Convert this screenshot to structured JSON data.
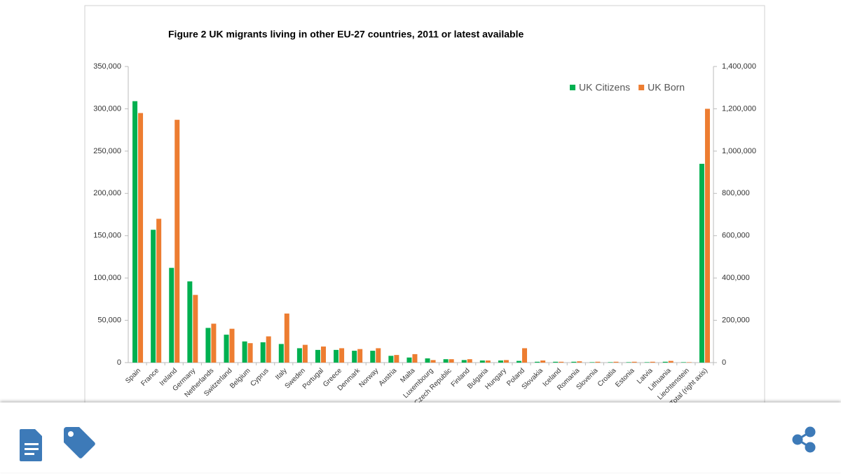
{
  "chart_data": {
    "type": "bar",
    "title": "Figure 2   UK migrants living in other EU-27 countries, 2011 or latest available",
    "categories": [
      "Spain",
      "France",
      "Ireland",
      "Germany",
      "Netherlands",
      "Switzerland",
      "Belgium",
      "Cyprus",
      "Italy",
      "Sweden",
      "Portugal",
      "Greece",
      "Denmark",
      "Norway",
      "Austria",
      "Malta",
      "Luxembourg",
      "Czech Republic",
      "Finland",
      "Bulgaria",
      "Hungary",
      "Poland",
      "Slovakia",
      "Iceland",
      "Romania",
      "Slovenia",
      "Croatia",
      "Estonia",
      "Latvia",
      "Lithuania",
      "Liechtenstein",
      "Total (right axis)"
    ],
    "series": [
      {
        "name": "UK Citizens",
        "color": "#00b050",
        "values": [
          309000,
          157000,
          112000,
          96000,
          41000,
          33000,
          25000,
          24000,
          22000,
          17000,
          15000,
          15000,
          14000,
          14000,
          8000,
          6000,
          5000,
          4000,
          3000,
          2500,
          2500,
          2000,
          1000,
          1000,
          1000,
          500,
          500,
          500,
          500,
          1000,
          500,
          null
        ]
      },
      {
        "name": "UK Born",
        "color": "#ed7d31",
        "values": [
          295000,
          170000,
          287000,
          80000,
          46000,
          40000,
          23000,
          31000,
          58000,
          21000,
          19000,
          17000,
          16000,
          17000,
          9000,
          10000,
          3000,
          4000,
          4000,
          2500,
          3000,
          17000,
          2500,
          1000,
          1500,
          1000,
          1000,
          1000,
          1000,
          2000,
          500,
          null
        ]
      },
      {
        "name": "UK Citizens",
        "color": "#00b050",
        "axis": "y2",
        "values": [
          null,
          null,
          null,
          null,
          null,
          null,
          null,
          null,
          null,
          null,
          null,
          null,
          null,
          null,
          null,
          null,
          null,
          null,
          null,
          null,
          null,
          null,
          null,
          null,
          null,
          null,
          null,
          null,
          null,
          null,
          null,
          940000
        ]
      },
      {
        "name": "UK Born",
        "color": "#ed7d31",
        "axis": "y2",
        "values": [
          null,
          null,
          null,
          null,
          null,
          null,
          null,
          null,
          null,
          null,
          null,
          null,
          null,
          null,
          null,
          null,
          null,
          null,
          null,
          null,
          null,
          null,
          null,
          null,
          null,
          null,
          null,
          null,
          null,
          null,
          null,
          1200000
        ]
      }
    ],
    "ylim": [
      0,
      350000
    ],
    "yticks": [
      0,
      {
        "value": 50000,
        "label": "50,000"
      },
      {
        "value": 100000,
        "label": "100,000"
      },
      {
        "value": 150000,
        "label": "150,000"
      },
      {
        "value": 200000,
        "label": "200,000"
      },
      {
        "value": 250000,
        "label": "250,000"
      },
      {
        "value": 300000,
        "label": "300,000"
      },
      {
        "value": 350000,
        "label": "350,000"
      }
    ],
    "y2lim": [
      0,
      1400000
    ],
    "y2ticks": [
      0,
      {
        "value": 200000,
        "label": "200,000"
      },
      {
        "value": 400000,
        "label": "400,000"
      },
      {
        "value": 600000,
        "label": "600,000"
      },
      {
        "value": 800000,
        "label": "800,000"
      },
      {
        "value": 1000000,
        "label": "1,000,000"
      },
      {
        "value": 1200000,
        "label": "1,200,000"
      },
      {
        "value": 1400000,
        "label": "1,400,000"
      }
    ],
    "legend": "upper right",
    "grid": false
  }
}
